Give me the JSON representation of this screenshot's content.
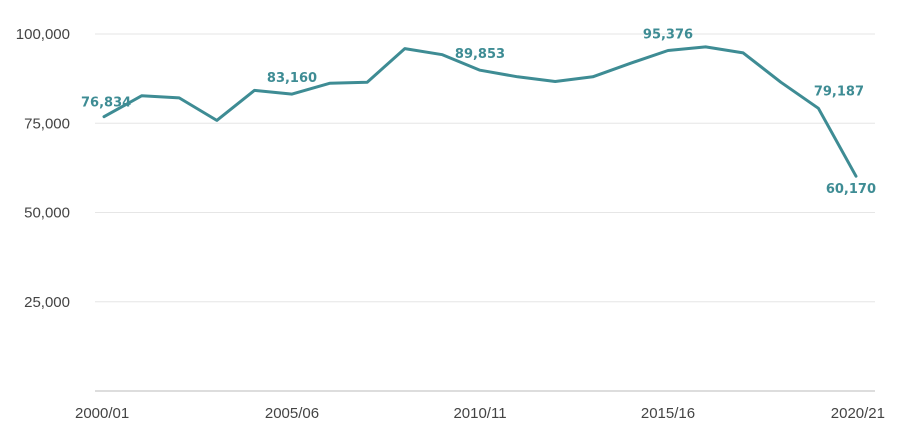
{
  "chart_data": {
    "type": "line",
    "title": "",
    "xlabel": "",
    "ylabel": "",
    "x": [
      "2000/01",
      "2001/02",
      "2002/03",
      "2003/04",
      "2004/05",
      "2005/06",
      "2006/07",
      "2007/08",
      "2008/09",
      "2009/10",
      "2010/11",
      "2011/12",
      "2012/13",
      "2013/14",
      "2014/15",
      "2015/16",
      "2016/17",
      "2017/18",
      "2018/19",
      "2019/20",
      "2020/21"
    ],
    "x_tick_labels": [
      "2000/01",
      "2005/06",
      "2010/11",
      "2015/16",
      "2020/21"
    ],
    "series": [
      {
        "name": "",
        "color": "#3e8c94",
        "values": [
          76834,
          82700,
          82100,
          75800,
          84200,
          83160,
          86200,
          86500,
          95900,
          94200,
          89853,
          88000,
          86700,
          88000,
          91800,
          95376,
          96400,
          94700,
          86500,
          79187,
          60170
        ]
      }
    ],
    "data_labels": [
      {
        "index": 0,
        "text": "76,834"
      },
      {
        "index": 5,
        "text": "83,160"
      },
      {
        "index": 10,
        "text": "89,853"
      },
      {
        "index": 15,
        "text": "95,376"
      },
      {
        "index": 19,
        "text": "79,187"
      },
      {
        "index": 20,
        "text": "60,170"
      }
    ],
    "ylim": [
      0,
      100000
    ],
    "y_ticks": [
      25000,
      50000,
      75000,
      100000
    ],
    "y_tick_labels": [
      "25,000",
      "50,000",
      "75,000",
      "100,000"
    ],
    "grid": true,
    "colors": {
      "line": "#3e8c94",
      "label": "#3e8c94",
      "grid": "#e6e6e6",
      "axis": "#bbbbbb"
    }
  }
}
